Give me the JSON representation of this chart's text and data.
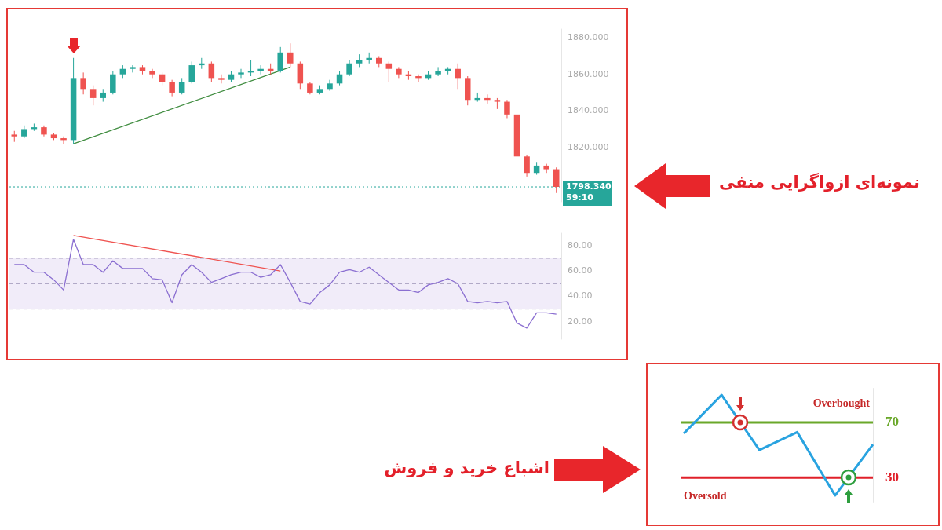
{
  "chart_data": [
    {
      "type": "candlestick",
      "categories": [
        null,
        null,
        null,
        null,
        null,
        null,
        null,
        null,
        null,
        null,
        null,
        null,
        null,
        null,
        null,
        null,
        null,
        null,
        null,
        null,
        null,
        null,
        null,
        null,
        null,
        null,
        null,
        null,
        null,
        null,
        null,
        null,
        null,
        null,
        null,
        null,
        null,
        null,
        null,
        null,
        null,
        null,
        null,
        null,
        null,
        null,
        null,
        null,
        null,
        null,
        null,
        null,
        null,
        null,
        null,
        null
      ],
      "ohlc": [
        [
          1827,
          1829,
          1823,
          1826
        ],
        [
          1826,
          1832,
          1825,
          1830
        ],
        [
          1830,
          1833,
          1829,
          1831
        ],
        [
          1831,
          1832,
          1826,
          1827
        ],
        [
          1827,
          1828,
          1824,
          1825
        ],
        [
          1825,
          1826,
          1822,
          1824
        ],
        [
          1824,
          1869,
          1822,
          1858
        ],
        [
          1858,
          1861,
          1849,
          1852
        ],
        [
          1852,
          1854,
          1843,
          1847
        ],
        [
          1847,
          1852,
          1845,
          1850
        ],
        [
          1850,
          1862,
          1849,
          1860
        ],
        [
          1860,
          1865,
          1858,
          1863
        ],
        [
          1863,
          1865,
          1861,
          1864
        ],
        [
          1864,
          1865,
          1860,
          1862
        ],
        [
          1862,
          1863,
          1858,
          1860
        ],
        [
          1860,
          1861,
          1854,
          1856
        ],
        [
          1856,
          1857,
          1848,
          1850
        ],
        [
          1850,
          1858,
          1849,
          1856
        ],
        [
          1856,
          1867,
          1855,
          1865
        ],
        [
          1865,
          1869,
          1863,
          1866
        ],
        [
          1866,
          1867,
          1856,
          1858
        ],
        [
          1858,
          1860,
          1855,
          1857
        ],
        [
          1857,
          1862,
          1856,
          1860
        ],
        [
          1860,
          1863,
          1858,
          1861
        ],
        [
          1861,
          1868,
          1859,
          1862
        ],
        [
          1862,
          1865,
          1860,
          1863
        ],
        [
          1863,
          1866,
          1860,
          1862
        ],
        [
          1862,
          1875,
          1861,
          1872
        ],
        [
          1872,
          1877,
          1864,
          1866
        ],
        [
          1866,
          1867,
          1852,
          1855
        ],
        [
          1855,
          1856,
          1849,
          1850
        ],
        [
          1850,
          1854,
          1849,
          1852
        ],
        [
          1852,
          1857,
          1851,
          1855
        ],
        [
          1855,
          1862,
          1854,
          1860
        ],
        [
          1860,
          1868,
          1859,
          1866
        ],
        [
          1866,
          1871,
          1864,
          1868
        ],
        [
          1868,
          1872,
          1866,
          1869
        ],
        [
          1869,
          1870,
          1864,
          1866
        ],
        [
          1866,
          1867,
          1856,
          1863
        ],
        [
          1863,
          1864,
          1858,
          1860
        ],
        [
          1860,
          1862,
          1857,
          1859
        ],
        [
          1859,
          1860,
          1856,
          1858
        ],
        [
          1858,
          1862,
          1857,
          1860
        ],
        [
          1860,
          1864,
          1859,
          1862
        ],
        [
          1862,
          1864,
          1860,
          1863
        ],
        [
          1863,
          1866,
          1852,
          1858
        ],
        [
          1858,
          1859,
          1843,
          1846
        ],
        [
          1846,
          1850,
          1845,
          1847
        ],
        [
          1847,
          1849,
          1844,
          1846
        ],
        [
          1846,
          1847,
          1841,
          1845
        ],
        [
          1845,
          1846,
          1836,
          1838
        ],
        [
          1838,
          1839,
          1812,
          1815
        ],
        [
          1815,
          1816,
          1804,
          1806
        ],
        [
          1806,
          1812,
          1805,
          1810
        ],
        [
          1810,
          1811,
          1806,
          1808
        ],
        [
          1808,
          1809,
          1795,
          1798.34
        ]
      ],
      "colors": [
        "#ef5350",
        "#26a69a",
        "#26a69a",
        "#ef5350",
        "#ef5350",
        "#ef5350",
        "#26a69a",
        "#ef5350",
        "#ef5350",
        "#26a69a",
        "#26a69a",
        "#26a69a",
        "#26a69a",
        "#ef5350",
        "#ef5350",
        "#ef5350",
        "#ef5350",
        "#26a69a",
        "#26a69a",
        "#26a69a",
        "#ef5350",
        "#ef5350",
        "#26a69a",
        "#26a69a",
        "#26a69a",
        "#26a69a",
        "#ef5350",
        "#26a69a",
        "#ef5350",
        "#ef5350",
        "#ef5350",
        "#26a69a",
        "#26a69a",
        "#26a69a",
        "#26a69a",
        "#26a69a",
        "#26a69a",
        "#ef5350",
        "#ef5350",
        "#ef5350",
        "#ef5350",
        "#ef5350",
        "#26a69a",
        "#26a69a",
        "#26a69a",
        "#ef5350",
        "#ef5350",
        "#26a69a",
        "#ef5350",
        "#ef5350",
        "#ef5350",
        "#ef5350",
        "#ef5350",
        "#26a69a",
        "#ef5350",
        "#ef5350"
      ],
      "series": [
        {
          "type": "line",
          "color": "#3d8b3d",
          "values": [
            null,
            null,
            null,
            null,
            null,
            null,
            1822,
            null,
            null,
            null,
            null,
            null,
            null,
            null,
            null,
            null,
            null,
            null,
            null,
            null,
            null,
            null,
            null,
            null,
            null,
            null,
            null,
            null,
            1864,
            null,
            null,
            null,
            null,
            null,
            null,
            null,
            null,
            null,
            null,
            null,
            null,
            null,
            null,
            null,
            null,
            null,
            null,
            null,
            null,
            null,
            null,
            null,
            null,
            null,
            null,
            null
          ]
        }
      ],
      "ylim": [
        1790,
        1885
      ],
      "yticks": [
        {
          "value": 1820,
          "label": "1820.000"
        },
        {
          "value": 1840,
          "label": "1840.000"
        },
        {
          "value": 1860,
          "label": "1860.000"
        },
        {
          "value": 1880,
          "label": "1880.000"
        }
      ],
      "tick_labels": "y",
      "marker": "none",
      "ref_lines": [
        {
          "axis": "y",
          "value": 1798.34,
          "label": "1798.340",
          "color": "#26a69a",
          "line_style": "dotted"
        }
      ],
      "annotations": [
        "59:10",
        "نمونه‌ای ازواگرایی منفی"
      ]
    },
    {
      "type": "line",
      "categories": [
        null,
        null,
        null,
        null,
        null,
        null,
        null,
        null,
        null,
        null,
        null,
        null,
        null,
        null,
        null,
        null,
        null,
        null,
        null,
        null,
        null,
        null,
        null,
        null,
        null,
        null,
        null,
        null,
        null,
        null,
        null,
        null,
        null,
        null,
        null,
        null,
        null,
        null,
        null,
        null,
        null,
        null,
        null,
        null,
        null,
        null,
        null,
        null,
        null,
        null,
        null,
        null,
        null,
        null,
        null,
        null
      ],
      "series": [
        {
          "color": "#8b6fd1",
          "values": [
            65,
            65,
            59,
            59,
            53,
            45,
            85,
            65,
            65,
            59,
            68,
            62,
            62,
            62,
            54,
            53,
            35,
            57,
            65,
            59,
            51,
            54,
            57,
            59,
            59,
            55,
            57,
            65,
            51,
            36,
            34,
            43,
            49,
            59,
            61,
            59,
            63,
            57,
            51,
            45,
            45,
            43,
            49,
            51,
            54,
            50,
            36,
            35,
            36,
            35,
            36,
            19,
            15,
            27,
            27,
            26
          ]
        },
        {
          "color": "#ef5350",
          "values": [
            null,
            null,
            null,
            null,
            null,
            null,
            88,
            null,
            null,
            null,
            null,
            null,
            null,
            null,
            null,
            null,
            null,
            null,
            null,
            null,
            null,
            null,
            null,
            null,
            null,
            null,
            null,
            60,
            null,
            null,
            null,
            null,
            null,
            null,
            null,
            null,
            null,
            null,
            null,
            null,
            null,
            null,
            null,
            null,
            null,
            null,
            null,
            null,
            null,
            null,
            null,
            null,
            null,
            null,
            null,
            null
          ]
        }
      ],
      "ylim": [
        6,
        90
      ],
      "yticks": [
        {
          "value": 20,
          "label": "20.00"
        },
        {
          "value": 40,
          "label": "40.00"
        },
        {
          "value": 60,
          "label": "60.00"
        },
        {
          "value": 80,
          "label": "80.00"
        }
      ],
      "tick_labels": "y",
      "marker": "none",
      "bands": [
        {
          "axis": "y",
          "from": 30,
          "to": 70,
          "color": "#f1ecf9"
        }
      ],
      "ref_lines": [
        {
          "axis": "y",
          "value": 70,
          "color": "#9e95b8",
          "line_style": "dashed"
        },
        {
          "axis": "y",
          "value": 50,
          "color": "#9e95b8",
          "line_style": "dashed"
        },
        {
          "axis": "y",
          "value": 30,
          "color": "#9e95b8",
          "line_style": "dashed"
        }
      ]
    },
    {
      "type": "line",
      "categories": [
        null,
        null,
        null,
        null,
        null,
        null
      ],
      "values": [
        62,
        90,
        50,
        63,
        17,
        54
      ],
      "color": "#29a3e0",
      "ylim": [
        12,
        95
      ],
      "yticks": [
        30,
        70
      ],
      "tick_labels": "y",
      "marker": "none",
      "ref_lines": [
        {
          "axis": "y",
          "value": 70,
          "color": "#6aa82a",
          "line_style": "solid"
        },
        {
          "axis": "y",
          "value": 30,
          "color": "#e0202a",
          "line_style": "solid"
        }
      ],
      "annotations": [
        "Overbought",
        "Oversold",
        "اشباع خرید و فروش"
      ]
    }
  ]
}
